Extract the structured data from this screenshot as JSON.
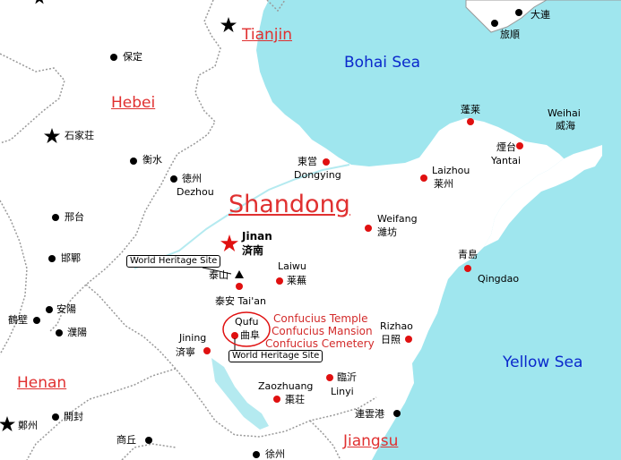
{
  "colors": {
    "sea": "#9fe6ee",
    "land": "#ffffff",
    "border": "#999999",
    "river": "#b4eaf0",
    "city_black": "#000000",
    "city_red": "#e01010",
    "label_red": "#e03030"
  },
  "provinces": {
    "tianjin": "Tianjin",
    "hebei": "Hebei",
    "shandong": "Shandong",
    "henan": "Henan",
    "jiangsu": "Jiangsu"
  },
  "seas": {
    "bohai": "Bohai Sea",
    "yellow": "Yellow Sea"
  },
  "cities": {
    "dalian": "大連",
    "lushun": "旅順",
    "baoding": "保定",
    "shijiazhuang": "石家荘",
    "hengshui": "衡水",
    "dezhou_cn": "徳州",
    "dezhou_en": "Dezhou",
    "xingtai": "邢台",
    "handan": "邯鄲",
    "anyang": "安陽",
    "hebi": "鶴壁",
    "puyang": "濮陽",
    "zhengzhou": "鄭州",
    "kaifeng": "開封",
    "shangqiu": "商丘",
    "xuzhou": "徐州",
    "lianyungang": "連雲港",
    "dongying_cn": "東営",
    "dongying_en": "Dongying",
    "penglai": "蓬莱",
    "weihai_en": "Weihai",
    "weihai_cn": "威海",
    "yantai_cn": "煙台",
    "yantai_en": "Yantai",
    "laizhou_en": "Laizhou",
    "laizhou_cn": "莱州",
    "weifang_en": "Weifang",
    "weifang_cn": "濰坊",
    "jinan_en": "Jinan",
    "jinan_cn": "済南",
    "laiwu_en": "Laiwu",
    "laiwu_cn": "莱蕪",
    "taishan": "泰山",
    "taian": "泰安 Tai'an",
    "qingdao_cn": "青島",
    "qingdao_en": "Qingdao",
    "qufu_en": "Qufu",
    "qufu_cn": "曲阜",
    "jining_en": "Jining",
    "jining_cn": "済寧",
    "rizhao_en": "Rizhao",
    "rizhao_cn": "日照",
    "linyi_cn": "臨沂",
    "linyi_en": "Linyi",
    "zaozhuang_en": "Zaozhuang",
    "zaozhuang_cn": "棗荘"
  },
  "heritage": {
    "label": "World Heritage Site",
    "temple": "Confucius Temple",
    "mansion": "Confucius Mansion",
    "cemetery": "Confucius Cemetery"
  }
}
